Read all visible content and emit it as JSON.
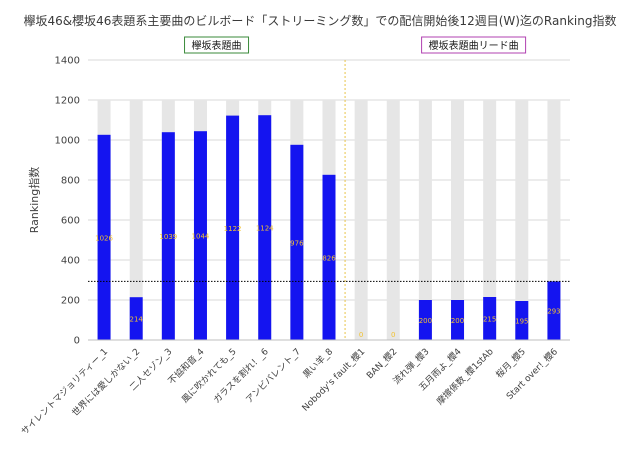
{
  "chart_data": {
    "type": "bar",
    "title": "欅坂46&櫻坂46表題系主要曲のビルボード「ストリーミング数」での配信開始後12週目(W)迄のRanking指数",
    "ylabel": "Ranking指数",
    "xlabel": "",
    "ylim": [
      0,
      1400
    ],
    "yticks": [
      0,
      200,
      400,
      600,
      800,
      1000,
      1200,
      1400
    ],
    "grid": true,
    "background_bar_value": 1200,
    "reference_line_value": 293,
    "groups": [
      {
        "label": "欅坂表題曲",
        "start": 0,
        "end": 7
      },
      {
        "label": "櫻坂表題曲リード曲",
        "start": 8,
        "end": 15
      }
    ],
    "categories": [
      "サイレントマジョリティー_1",
      "世界には愛しかない_2",
      "二人セゾン_3",
      "不協和音_4",
      "風に吹かれても_5",
      "ガラスを割れ！_6",
      "アンビバレント_7",
      "黒い羊_8",
      "Nobody's fault_櫻1",
      "BAN_櫻2",
      "流れ弾_櫻3",
      "五月雨よ_櫻4",
      "摩擦係数_櫻1stAb",
      "桜月_櫻5",
      "Start over!_櫻6"
    ],
    "values": [
      1026,
      214,
      1039,
      1044,
      1122,
      1124,
      976,
      826,
      0,
      0,
      200,
      200,
      215,
      195,
      293
    ],
    "data_labels": [
      "1026",
      "214",
      "1039",
      "1044",
      "1122",
      "1124",
      "976",
      "826",
      "0",
      "0",
      "200",
      "200",
      "215",
      "195",
      "293"
    ],
    "colors": {
      "bar": "#1414f0",
      "background_bar": "#e6e6e6",
      "gridline": "#d9d9d9",
      "separator": "#e8c44a",
      "group1_border": "#3a8a3a",
      "group2_border": "#b040b0",
      "data_label": "#f2c230"
    }
  }
}
